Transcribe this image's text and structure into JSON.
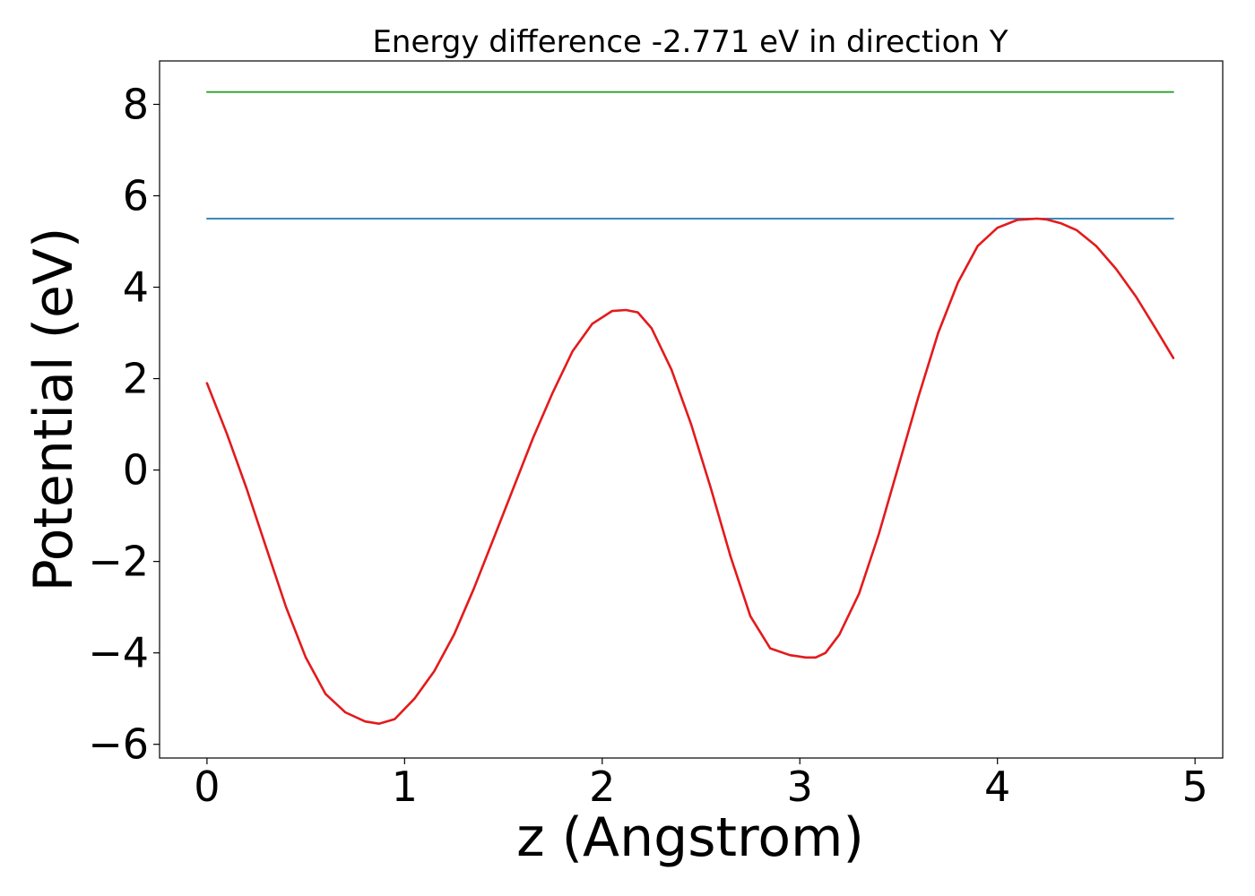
{
  "chart_data": {
    "type": "line",
    "title": "Energy difference -2.771 eV in direction Y",
    "xlabel": "z (Angstrom)",
    "ylabel": "Potential (eV)",
    "xlim": [
      -0.24,
      5.14
    ],
    "ylim": [
      -6.3,
      8.95
    ],
    "x_ticks": [
      0,
      1,
      2,
      3,
      4,
      5
    ],
    "x_tick_labels": [
      "0",
      "1",
      "2",
      "3",
      "4",
      "5"
    ],
    "y_ticks": [
      -6,
      -4,
      -2,
      0,
      2,
      4,
      6,
      8
    ],
    "y_tick_labels": [
      "−6",
      "−4",
      "−2",
      "0",
      "2",
      "4",
      "6",
      "8"
    ],
    "grid": false,
    "legend": "none",
    "series": [
      {
        "color": "#1f77b4",
        "style": "horizontal",
        "x": [
          0,
          4.89
        ],
        "y": [
          5.5,
          5.5
        ]
      },
      {
        "color": "#2ca02c",
        "style": "horizontal",
        "x": [
          0,
          4.89
        ],
        "y": [
          8.27,
          8.27
        ]
      },
      {
        "color": "#e31a1c",
        "style": "curve",
        "x": [
          0,
          0.1,
          0.2,
          0.3,
          0.4,
          0.5,
          0.6,
          0.7,
          0.8,
          0.87,
          0.95,
          1.05,
          1.15,
          1.25,
          1.35,
          1.45,
          1.55,
          1.65,
          1.75,
          1.85,
          1.95,
          2.05,
          2.12,
          2.18,
          2.25,
          2.35,
          2.45,
          2.55,
          2.65,
          2.75,
          2.85,
          2.95,
          3.03,
          3.08,
          3.13,
          3.2,
          3.3,
          3.4,
          3.5,
          3.6,
          3.7,
          3.8,
          3.9,
          4.0,
          4.1,
          4.2,
          4.25,
          4.32,
          4.4,
          4.5,
          4.6,
          4.7,
          4.8,
          4.89
        ],
        "y": [
          1.9,
          0.8,
          -0.4,
          -1.7,
          -3.0,
          -4.1,
          -4.9,
          -5.3,
          -5.5,
          -5.55,
          -5.45,
          -5.0,
          -4.4,
          -3.6,
          -2.6,
          -1.5,
          -0.4,
          0.7,
          1.7,
          2.6,
          3.2,
          3.48,
          3.5,
          3.45,
          3.1,
          2.2,
          1.0,
          -0.4,
          -1.9,
          -3.2,
          -3.9,
          -4.05,
          -4.1,
          -4.1,
          -4.0,
          -3.6,
          -2.7,
          -1.4,
          0.1,
          1.6,
          3.0,
          4.1,
          4.9,
          5.3,
          5.47,
          5.5,
          5.48,
          5.4,
          5.25,
          4.9,
          4.4,
          3.8,
          3.1,
          2.45
        ]
      }
    ]
  }
}
